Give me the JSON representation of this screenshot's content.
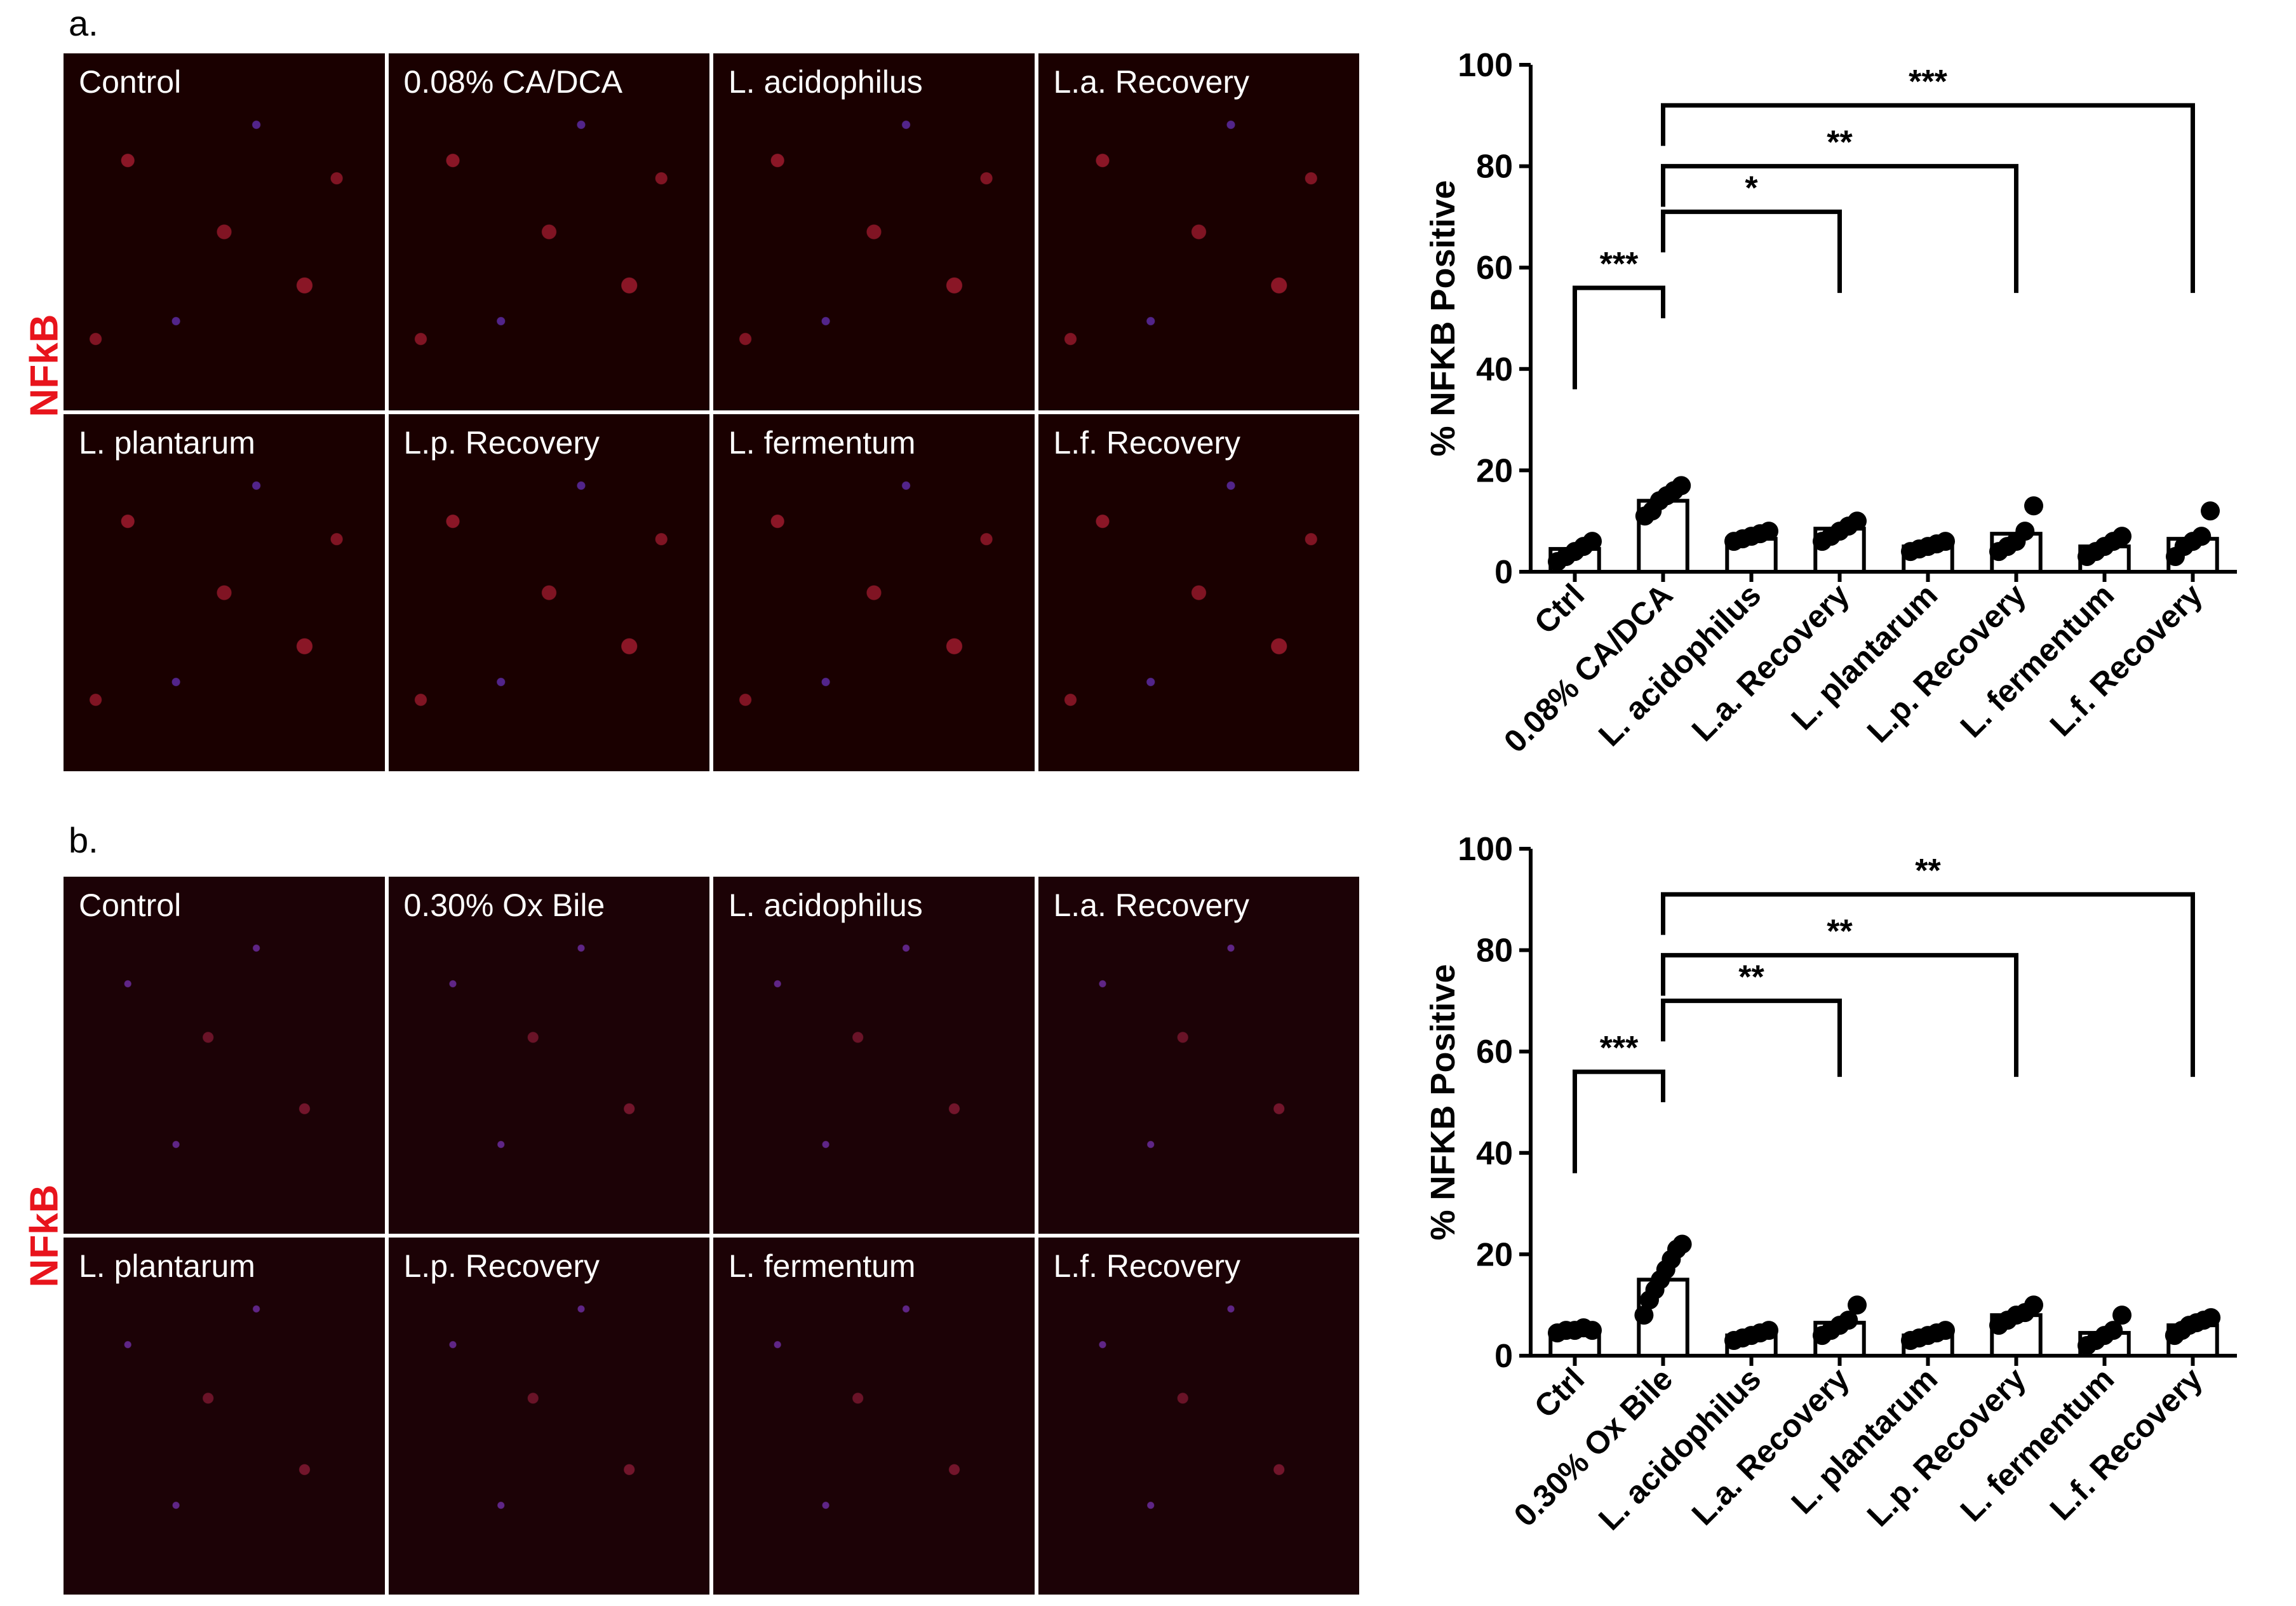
{
  "panels": [
    {
      "label": "a.",
      "stain": "NFkB",
      "tiles": [
        "Control",
        "0.08% CA/DCA",
        "L. acidophilus",
        "L.a. Recovery",
        "L. plantarum",
        "L.p. Recovery",
        "L. fermentum",
        "L.f. Recovery"
      ]
    },
    {
      "label": "b.",
      "stain": "NFkB",
      "tiles": [
        "Control",
        "0.30% Ox Bile",
        "L. acidophilus",
        "L.a. Recovery",
        "L. plantarum",
        "L.p. Recovery",
        "L. fermentum",
        "L.f. Recovery"
      ]
    }
  ],
  "chart_data": [
    {
      "type": "bar",
      "ylabel": "% NFKB Positive",
      "ylim": [
        0,
        100
      ],
      "yticks": [
        0,
        20,
        40,
        60,
        80,
        100
      ],
      "categories": [
        "Ctrl",
        "0.08% CA/DCA",
        "L. acidophilus",
        "L.a. Recovery",
        "L. plantarum",
        "L.p. Recovery",
        "L. fermentum",
        "L.f. Recovery"
      ],
      "values": [
        4.5,
        14,
        6.5,
        8.5,
        5,
        7.5,
        5,
        6.5
      ],
      "points": [
        [
          2,
          3,
          4,
          5,
          6
        ],
        [
          11,
          12,
          14,
          15,
          16,
          17
        ],
        [
          6,
          6.5,
          7,
          7.5,
          8
        ],
        [
          6,
          7,
          8,
          9,
          10
        ],
        [
          4,
          4.5,
          5,
          5.5,
          6
        ],
        [
          4,
          5,
          6,
          8,
          13
        ],
        [
          3,
          4,
          5,
          6,
          7
        ],
        [
          3,
          5,
          6,
          7,
          12
        ]
      ],
      "significance": [
        {
          "from": "Ctrl",
          "to": "0.08% CA/DCA",
          "y": 56,
          "label": "***"
        },
        {
          "from": "0.08% CA/DCA",
          "to": "L.a. Recovery",
          "y": 71,
          "label": "*"
        },
        {
          "from": "0.08% CA/DCA",
          "to": "L.p. Recovery",
          "y": 80,
          "label": "**"
        },
        {
          "from": "0.08% CA/DCA",
          "to": "L.f. Recovery",
          "y": 92,
          "label": "***"
        }
      ]
    },
    {
      "type": "bar",
      "ylabel": "% NFKB Positive",
      "ylim": [
        0,
        100
      ],
      "yticks": [
        0,
        20,
        40,
        60,
        80,
        100
      ],
      "categories": [
        "Ctrl",
        "0.30% Ox Bile",
        "L. acidophilus",
        "L.a. Recovery",
        "L. plantarum",
        "L.p. Recovery",
        "L. fermentum",
        "L.f. Recovery"
      ],
      "values": [
        5,
        15,
        4,
        6.5,
        4,
        8,
        4.5,
        6
      ],
      "points": [
        [
          4.5,
          5,
          5,
          5.5,
          5
        ],
        [
          8,
          11,
          13,
          15,
          17,
          19,
          21,
          22
        ],
        [
          3,
          3.5,
          4,
          4.5,
          5
        ],
        [
          4,
          5,
          6,
          7,
          10
        ],
        [
          3,
          3.5,
          4,
          4.5,
          5
        ],
        [
          6,
          7,
          8,
          8.5,
          10
        ],
        [
          2,
          3,
          4,
          5,
          8
        ],
        [
          4,
          5,
          6,
          6.5,
          7,
          7.5
        ]
      ],
      "significance": [
        {
          "from": "Ctrl",
          "to": "0.30% Ox Bile",
          "y": 56,
          "label": "***"
        },
        {
          "from": "0.30% Ox Bile",
          "to": "L.a. Recovery",
          "y": 70,
          "label": "**"
        },
        {
          "from": "0.30% Ox Bile",
          "to": "L.p. Recovery",
          "y": 79,
          "label": "**"
        },
        {
          "from": "0.30% Ox Bile",
          "to": "L.f. Recovery",
          "y": 91,
          "label": "**"
        }
      ]
    }
  ]
}
